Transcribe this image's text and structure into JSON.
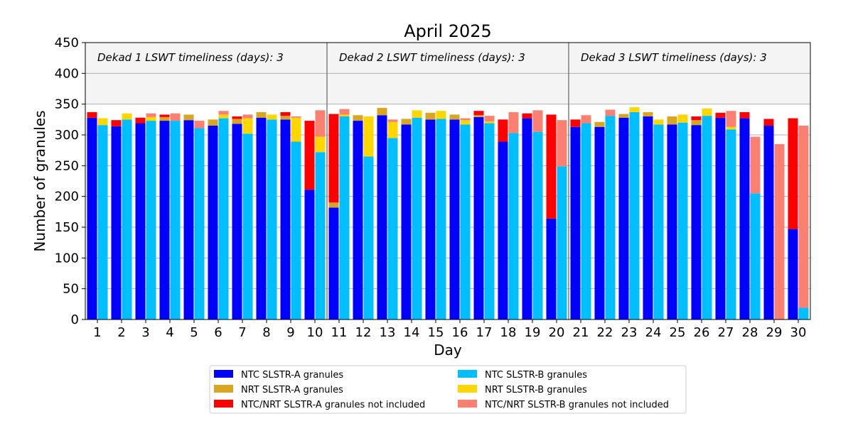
{
  "chart_data": {
    "type": "bar",
    "title": "April 2025",
    "xlabel": "Day",
    "ylabel": "Number of granules",
    "ylim": [
      0,
      450
    ],
    "yticks": [
      0,
      50,
      100,
      150,
      200,
      250,
      300,
      350,
      400,
      450
    ],
    "grid": true,
    "legend_position": "bottom",
    "days": [
      "1",
      "2",
      "3",
      "4",
      "5",
      "6",
      "7",
      "8",
      "9",
      "10",
      "11",
      "12",
      "13",
      "14",
      "15",
      "16",
      "17",
      "18",
      "19",
      "20",
      "21",
      "22",
      "23",
      "24",
      "25",
      "26",
      "27",
      "28",
      "29",
      "30"
    ],
    "dekads": [
      {
        "label": "Dekad 1 LSWT timeliness (days): 3"
      },
      {
        "label": "Dekad 2 LSWT timeliness (days): 3"
      },
      {
        "label": "Dekad 3 LSWT timeliness (days): 3"
      }
    ],
    "series": [
      {
        "name": "NTC SLSTR-A granules",
        "color": "#0000ff",
        "sensor": "A",
        "values": [
          328,
          314,
          319,
          323,
          324,
          315,
          318,
          328,
          325,
          211,
          182,
          323,
          332,
          317,
          325,
          325,
          329,
          289,
          327,
          164,
          313,
          313,
          328,
          330,
          317,
          316,
          328,
          327,
          315,
          147
        ]
      },
      {
        "name": "NRT SLSTR-A granules",
        "color": "#daa520",
        "sensor": "A",
        "values": [
          0,
          0,
          0,
          6,
          9,
          10,
          8,
          9,
          6,
          0,
          8,
          9,
          12,
          9,
          11,
          8,
          3,
          0,
          0,
          0,
          0,
          8,
          6,
          7,
          13,
          8,
          0,
          0,
          0,
          0
        ]
      },
      {
        "name": "NTC/NRT SLSTR-A granules not included",
        "color": "#ff0000",
        "sensor": "A",
        "values": [
          9,
          10,
          9,
          4,
          0,
          0,
          4,
          0,
          6,
          112,
          144,
          0,
          0,
          0,
          0,
          0,
          7,
          36,
          8,
          169,
          12,
          0,
          0,
          0,
          0,
          6,
          8,
          10,
          11,
          180
        ]
      },
      {
        "name": "NTC SLSTR-B granules",
        "color": "#00bfff",
        "sensor": "B",
        "values": [
          316,
          325,
          323,
          323,
          311,
          327,
          302,
          325,
          289,
          272,
          330,
          265,
          295,
          328,
          326,
          317,
          319,
          303,
          305,
          249,
          319,
          331,
          337,
          317,
          320,
          331,
          309,
          205,
          0,
          19
        ]
      },
      {
        "name": "NRT SLSTR-B granules",
        "color": "#ffd700",
        "sensor": "B",
        "values": [
          11,
          10,
          6,
          0,
          0,
          6,
          25,
          8,
          39,
          25,
          3,
          65,
          26,
          12,
          13,
          7,
          3,
          0,
          0,
          0,
          0,
          0,
          8,
          8,
          13,
          12,
          4,
          0,
          0,
          0
        ]
      },
      {
        "name": "NTC/NRT SLSTR-B granules not included",
        "color": "#fa8072",
        "sensor": "B",
        "values": [
          0,
          0,
          6,
          12,
          12,
          6,
          6,
          0,
          2,
          43,
          9,
          0,
          4,
          0,
          0,
          3,
          9,
          34,
          35,
          75,
          13,
          10,
          0,
          0,
          0,
          0,
          26,
          92,
          285,
          296
        ]
      }
    ]
  }
}
